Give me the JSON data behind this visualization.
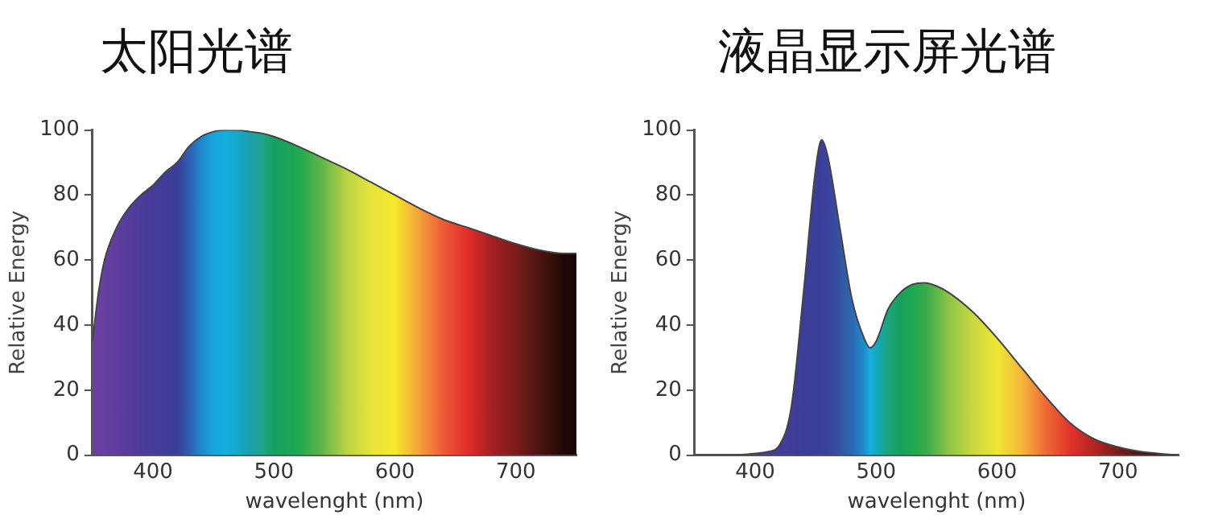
{
  "chart_data": [
    {
      "type": "area",
      "title": "太阳光谱",
      "xlabel": "wavelenght (nm)",
      "ylabel": "Relative Energy",
      "xlim": [
        350,
        750
      ],
      "xticks": [
        400,
        500,
        600,
        700
      ],
      "ylim": [
        0,
        100
      ],
      "yticks": [
        0,
        20,
        40,
        60,
        80,
        100
      ],
      "grid": false,
      "legend": false,
      "marker": "none",
      "series": [
        {
          "color": "#444444",
          "x": [
            350,
            355,
            360,
            370,
            380,
            390,
            400,
            410,
            420,
            430,
            440,
            450,
            460,
            470,
            480,
            490,
            500,
            520,
            540,
            560,
            580,
            600,
            620,
            640,
            660,
            680,
            700,
            720,
            740,
            750
          ],
          "values": [
            35,
            50,
            60,
            70,
            76,
            80,
            83,
            87,
            90,
            95,
            98,
            99.5,
            100,
            100,
            99.5,
            99,
            98,
            95,
            91.5,
            88,
            84,
            80,
            76,
            72.5,
            70,
            67.5,
            65,
            63,
            62,
            62
          ],
          "colors": [
            "#6b3fa0",
            "#6a3fa0",
            "#673f9f",
            "#5e3d9e",
            "#553c9c",
            "#4d3b9a",
            "#473b99",
            "#413c98",
            "#3b3e98",
            "#2f5eb0",
            "#1e88cc",
            "#16a6dc",
            "#13aee0",
            "#15a8c8",
            "#1aa0b0",
            "#1fa58a",
            "#16a060",
            "#1ea850",
            "#62b548",
            "#b9d443",
            "#e6e43c",
            "#f6e82b",
            "#f3a13a",
            "#ef5a36",
            "#e22d2a",
            "#a42022",
            "#7a1c1a",
            "#4a1510",
            "#200808",
            "#150505"
          ]
        }
      ]
    },
    {
      "type": "area",
      "title": "液晶显示屏光谱",
      "xlabel": "wavelenght (nm)",
      "ylabel": "Relative Energy",
      "xlim": [
        350,
        750
      ],
      "xticks": [
        400,
        500,
        600,
        700
      ],
      "ylim": [
        0,
        100
      ],
      "yticks": [
        0,
        20,
        40,
        60,
        80,
        100
      ],
      "grid": false,
      "legend": false,
      "marker": "none",
      "series": [
        {
          "color": "#444444",
          "x": [
            350,
            380,
            400,
            410,
            420,
            430,
            440,
            450,
            455,
            460,
            470,
            480,
            490,
            495,
            500,
            510,
            520,
            530,
            540,
            550,
            560,
            580,
            600,
            620,
            640,
            660,
            680,
            700,
            720,
            740,
            750
          ],
          "values": [
            0,
            0,
            0.5,
            1,
            3,
            15,
            50,
            88,
            97,
            92,
            70,
            48,
            36,
            33,
            35,
            45,
            50,
            52.5,
            53,
            52,
            50,
            44,
            36,
            27,
            18,
            10,
            5,
            2.5,
            1,
            0.3,
            0
          ],
          "colors": [
            "#4a3a98",
            "#4a3a98",
            "#4a3a98",
            "#473b99",
            "#433c98",
            "#3f3d98",
            "#3b3e98",
            "#3a3f99",
            "#3a3f9a",
            "#3a439c",
            "#34529f",
            "#2a6ab5",
            "#1e8ccc",
            "#13aee0",
            "#14a8c0",
            "#1aa57a",
            "#16a060",
            "#1ea850",
            "#34aa4c",
            "#5db548",
            "#8ec446",
            "#c8d83f",
            "#f0e635",
            "#f6b83a",
            "#ef6a35",
            "#e2342a",
            "#b42424",
            "#7a1c1a",
            "#4a1510",
            "#300c0a",
            "#200808"
          ]
        }
      ]
    }
  ]
}
